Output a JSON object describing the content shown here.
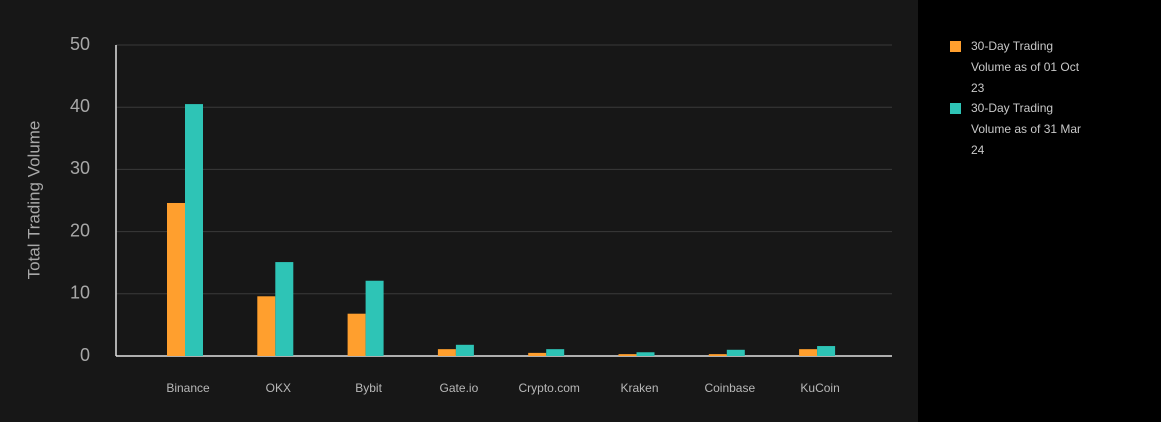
{
  "chart_data": {
    "type": "bar",
    "y_label": "Total Trading Volume",
    "categories": [
      "Binance",
      "OKX",
      "Bybit",
      "Gate.io",
      "Crypto.com",
      "Kraken",
      "Coinbase",
      "KuCoin"
    ],
    "series": [
      {
        "name": "30-Day Trading Volume as of 01 Oct 23",
        "color": "#ff9f2e",
        "values": [
          24.6,
          9.6,
          6.8,
          1.1,
          0.5,
          0.3,
          0.3,
          1.1
        ]
      },
      {
        "name": "30-Day Trading Volume as of 31 Mar 24",
        "color": "#2ec4b6",
        "values": [
          40.5,
          15.1,
          12.1,
          1.8,
          1.1,
          0.6,
          1.0,
          1.6
        ]
      }
    ],
    "ylim": [
      0,
      50
    ],
    "yticks": [
      0,
      10,
      20,
      30,
      40,
      50
    ],
    "grid": true
  }
}
